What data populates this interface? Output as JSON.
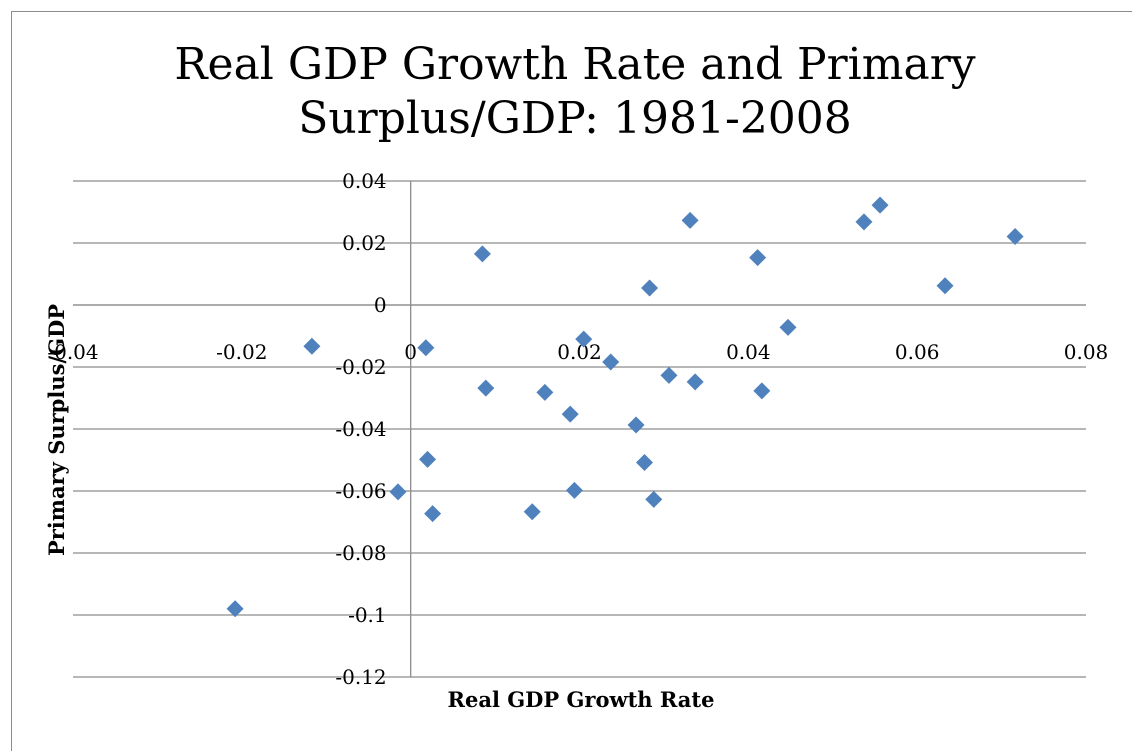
{
  "chart_data": {
    "type": "scatter",
    "title": "Real GDP Growth Rate and Primary Surplus/GDP: 1981-2008",
    "title_lines": [
      "Real GDP Growth Rate and Primary",
      "Surplus/GDP: 1981-2008"
    ],
    "xlabel": "Real GDP Growth Rate",
    "ylabel": "Primary Surplus/GDP",
    "xlim": [
      -0.04,
      0.08
    ],
    "ylim": [
      -0.12,
      0.04
    ],
    "x_ticks": [
      -0.04,
      -0.02,
      0,
      0.02,
      0.04,
      0.06,
      0.08
    ],
    "x_tick_labels": [
      "-0.04",
      "-0.02",
      "0",
      "0.02",
      "0.04",
      "0.06",
      "0.08"
    ],
    "y_ticks": [
      0.04,
      0.02,
      0,
      -0.02,
      -0.04,
      -0.06,
      -0.08,
      -0.1,
      -0.12
    ],
    "y_tick_labels": [
      "0.04",
      "0.02",
      "0",
      "-0.02",
      "-0.04",
      "-0.06",
      "-0.08",
      "-0.1",
      "-0.12"
    ],
    "grid": true,
    "marker_color": "#4f81bd",
    "points": [
      {
        "x": -0.0208,
        "y": -0.098
      },
      {
        "x": -0.0117,
        "y": -0.0133
      },
      {
        "x": -0.0015,
        "y": -0.0603
      },
      {
        "x": 0.0018,
        "y": -0.0138
      },
      {
        "x": 0.002,
        "y": -0.0498
      },
      {
        "x": 0.0026,
        "y": -0.0673
      },
      {
        "x": 0.0085,
        "y": 0.0165
      },
      {
        "x": 0.0089,
        "y": -0.0268
      },
      {
        "x": 0.0144,
        "y": -0.0667
      },
      {
        "x": 0.0159,
        "y": -0.0282
      },
      {
        "x": 0.0189,
        "y": -0.0352
      },
      {
        "x": 0.0194,
        "y": -0.0598
      },
      {
        "x": 0.0205,
        "y": -0.011
      },
      {
        "x": 0.0237,
        "y": -0.0184
      },
      {
        "x": 0.0267,
        "y": -0.0387
      },
      {
        "x": 0.0277,
        "y": -0.0508
      },
      {
        "x": 0.0283,
        "y": 0.0055
      },
      {
        "x": 0.0288,
        "y": -0.0627
      },
      {
        "x": 0.0306,
        "y": -0.0227
      },
      {
        "x": 0.0331,
        "y": 0.0273
      },
      {
        "x": 0.0337,
        "y": -0.0248
      },
      {
        "x": 0.0411,
        "y": 0.0153
      },
      {
        "x": 0.0416,
        "y": -0.0277
      },
      {
        "x": 0.0447,
        "y": -0.0072
      },
      {
        "x": 0.0537,
        "y": 0.0268
      },
      {
        "x": 0.0556,
        "y": 0.0322
      },
      {
        "x": 0.0633,
        "y": 0.0062
      },
      {
        "x": 0.0716,
        "y": 0.0221
      }
    ]
  }
}
